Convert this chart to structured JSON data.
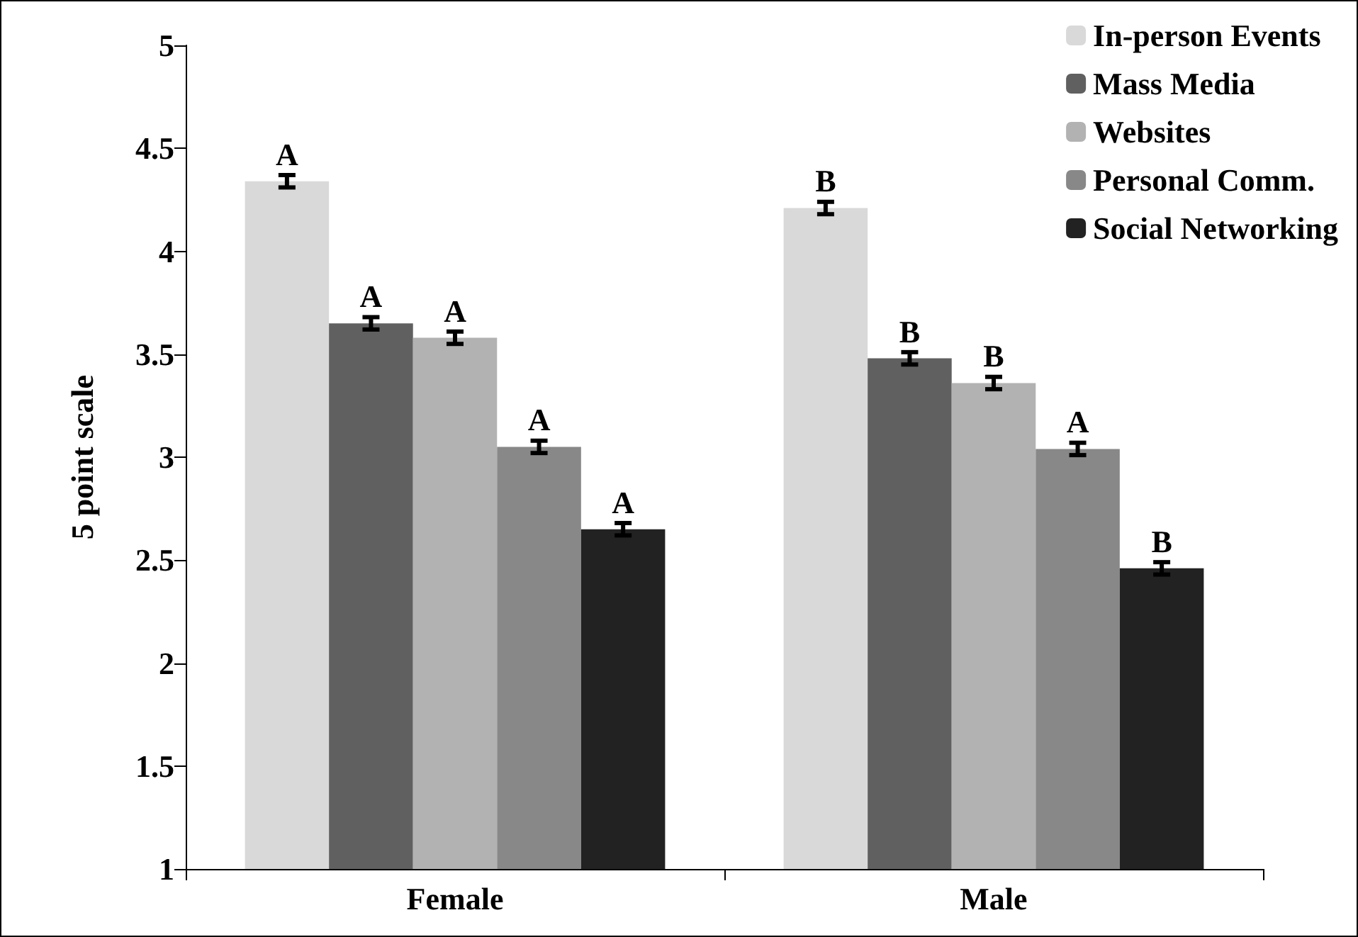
{
  "chart_data": {
    "type": "bar",
    "ylabel": "5 point scale",
    "categories": [
      "Female",
      "Male"
    ],
    "series": [
      {
        "name": "In-person Events",
        "color": "#d9d9d9",
        "values": [
          4.34,
          4.21
        ],
        "errors": [
          0.03,
          0.03
        ],
        "value_labels": [
          "A",
          "B"
        ]
      },
      {
        "name": "Mass Media",
        "color": "#606060",
        "values": [
          3.65,
          3.48
        ],
        "errors": [
          0.03,
          0.03
        ],
        "value_labels": [
          "A",
          "B"
        ]
      },
      {
        "name": "Websites",
        "color": "#b2b2b2",
        "values": [
          3.58,
          3.36
        ],
        "errors": [
          0.03,
          0.03
        ],
        "value_labels": [
          "A",
          "B"
        ]
      },
      {
        "name": "Personal Comm.",
        "color": "#888888",
        "values": [
          3.05,
          3.04
        ],
        "errors": [
          0.03,
          0.03
        ],
        "value_labels": [
          "A",
          "A"
        ]
      },
      {
        "name": "Social Networking",
        "color": "#222222",
        "values": [
          2.65,
          2.46
        ],
        "errors": [
          0.03,
          0.03
        ],
        "value_labels": [
          "A",
          "B"
        ]
      }
    ],
    "ylim": [
      1,
      5
    ],
    "yticks": [
      1,
      1.5,
      2,
      2.5,
      3,
      3.5,
      4,
      4.5,
      5
    ],
    "grid": false,
    "legend": "top right"
  }
}
